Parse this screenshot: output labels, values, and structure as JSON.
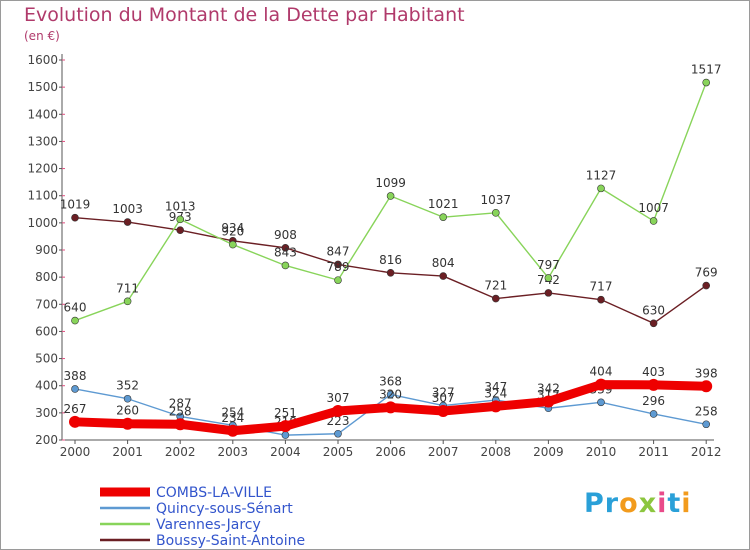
{
  "chart_data": {
    "type": "line",
    "title": "Evolution du Montant de la Dette par Habitant",
    "subtitle": "(en €)",
    "ylim": [
      200,
      1600
    ],
    "yticks": [
      200,
      300,
      400,
      500,
      600,
      700,
      800,
      900,
      1000,
      1100,
      1200,
      1300,
      1400,
      1500,
      1600
    ],
    "x": [
      2000,
      2001,
      2002,
      2003,
      2004,
      2005,
      2006,
      2007,
      2008,
      2009,
      2010,
      2011,
      2012
    ],
    "grid": false,
    "legend_position": "bottom-left",
    "series": [
      {
        "name": "Boussy-Saint-Antoine",
        "color": "#6b1f24",
        "values": [
          1019,
          1003,
          973,
          934,
          908,
          847,
          816,
          804,
          721,
          742,
          717,
          630,
          769
        ],
        "labels": [
          "1019",
          "1003",
          "973",
          "934",
          "908",
          "847",
          "816",
          "804",
          "721",
          "742",
          "717",
          "630",
          "769"
        ]
      },
      {
        "name": "Varennes-Jarcy",
        "color": "#88d45a",
        "values": [
          640,
          711,
          1013,
          920,
          843,
          789,
          1099,
          1021,
          1037,
          797,
          1127,
          1007,
          1517
        ],
        "labels": [
          "640",
          "711",
          "1013",
          "920",
          "843",
          "789",
          "1099",
          "1021",
          "1037",
          "797",
          "1127",
          "1007",
          "1517"
        ]
      },
      {
        "name": "Quincy-sous-Sénart",
        "color": "#5e9ad2",
        "values": [
          388,
          352,
          287,
          254,
          218,
          223,
          368,
          327,
          347,
          317,
          339,
          296,
          258
        ],
        "labels": [
          "388",
          "352",
          "287",
          "254",
          "218",
          "223",
          "368",
          "327",
          "347",
          "317",
          "339",
          "296",
          "258"
        ]
      },
      {
        "name": "COMBS-LA-VILLE",
        "color": "#ee0000",
        "values": [
          267,
          260,
          258,
          234,
          251,
          307,
          320,
          307,
          324,
          342,
          404,
          403,
          398
        ],
        "labels": [
          "267",
          "260",
          "258",
          "234",
          "251",
          "307",
          "320",
          "307",
          "324",
          "342",
          "404",
          "403",
          "398"
        ]
      }
    ],
    "legend": [
      "COMBS-LA-VILLE",
      "Quincy-sous-Sénart",
      "Varennes-Jarcy",
      "Boussy-Saint-Antoine"
    ]
  },
  "logo": {
    "text": "Proxiti",
    "colors": [
      "#2aa0d8",
      "#2aa0d8",
      "#f29b1d",
      "#8cc63f",
      "#e94b8a",
      "#2aa0d8",
      "#f29b1d"
    ]
  }
}
